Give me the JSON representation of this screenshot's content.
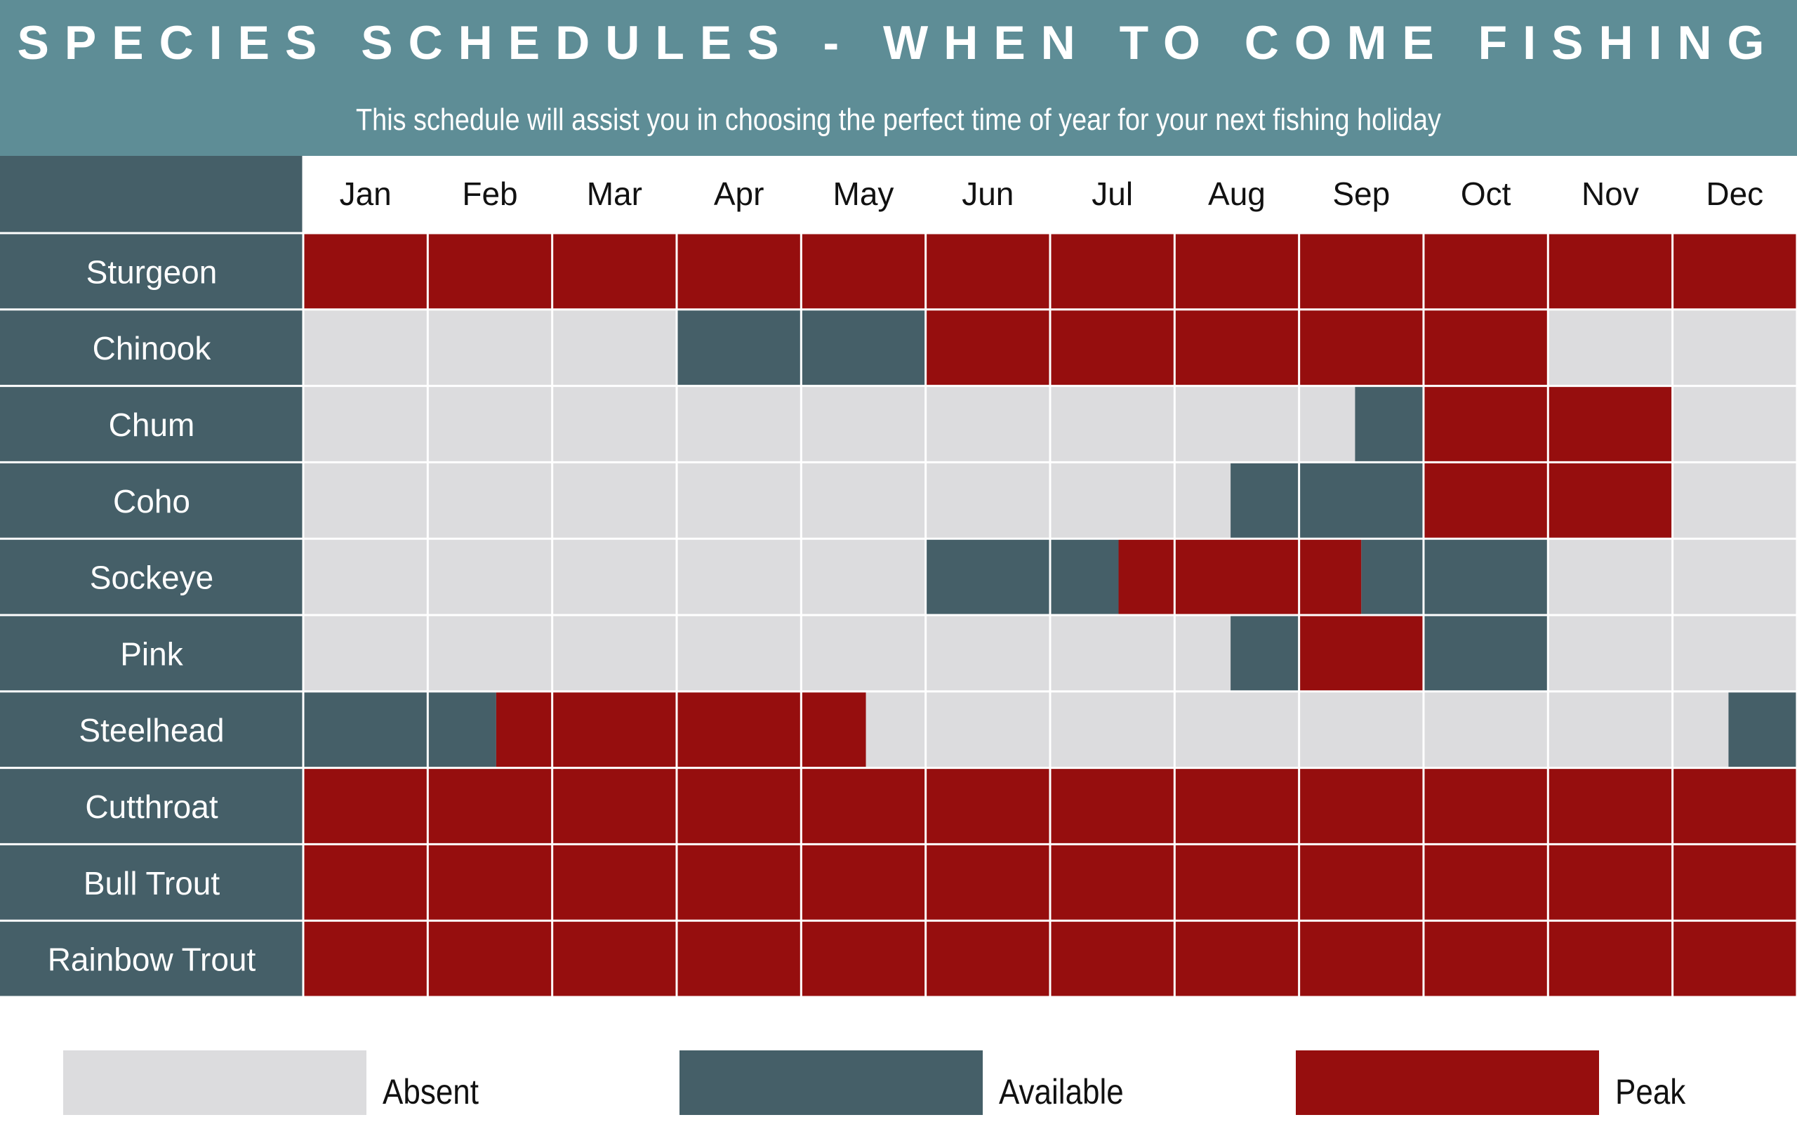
{
  "header": {
    "title": "SPECIES SCHEDULES - WHEN TO COME FISHING",
    "subtitle": "This schedule will assist you in choosing the perfect time of year for your next fishing holiday"
  },
  "colors": {
    "header_bg": "#5e8d96",
    "row_label_bg": "#455f68",
    "absent": "#dcdcde",
    "available": "#455f68",
    "peak": "#960e0e",
    "gridline": "#ffffff"
  },
  "chart_data": {
    "type": "heatmap",
    "title": "SPECIES SCHEDULES - WHEN TO COME FISHING",
    "subtitle": "This schedule will assist you in choosing the perfect time of year for your next fishing holiday",
    "months": [
      "Jan",
      "Feb",
      "Mar",
      "Apr",
      "May",
      "Jun",
      "Jul",
      "Aug",
      "Sep",
      "Oct",
      "Nov",
      "Dec"
    ],
    "legend": [
      {
        "key": "absent",
        "label": "Absent",
        "color": "#dcdcde"
      },
      {
        "key": "available",
        "label": "Available",
        "color": "#455f68"
      },
      {
        "key": "peak",
        "label": "Peak",
        "color": "#960e0e"
      }
    ],
    "species": [
      {
        "name": "Sturgeon",
        "periods": [
          {
            "from": 1,
            "to": 13,
            "status": "peak"
          }
        ]
      },
      {
        "name": "Chinook",
        "periods": [
          {
            "from": 4,
            "to": 6,
            "status": "available"
          },
          {
            "from": 6,
            "to": 11,
            "status": "peak"
          }
        ]
      },
      {
        "name": "Chum",
        "periods": [
          {
            "from": 9.45,
            "to": 10,
            "status": "available"
          },
          {
            "from": 10,
            "to": 12,
            "status": "peak"
          }
        ]
      },
      {
        "name": "Coho",
        "periods": [
          {
            "from": 8.45,
            "to": 10,
            "status": "available"
          },
          {
            "from": 10,
            "to": 12,
            "status": "peak"
          }
        ]
      },
      {
        "name": "Sockeye",
        "periods": [
          {
            "from": 6,
            "to": 7.55,
            "status": "available"
          },
          {
            "from": 7.55,
            "to": 9.5,
            "status": "peak"
          },
          {
            "from": 9.5,
            "to": 11,
            "status": "available"
          }
        ]
      },
      {
        "name": "Pink",
        "periods": [
          {
            "from": 8.45,
            "to": 9,
            "status": "available"
          },
          {
            "from": 9,
            "to": 10,
            "status": "peak"
          },
          {
            "from": 10,
            "to": 11,
            "status": "available"
          }
        ]
      },
      {
        "name": "Steelhead",
        "periods": [
          {
            "from": 1,
            "to": 2.55,
            "status": "available"
          },
          {
            "from": 2.55,
            "to": 5.52,
            "status": "peak"
          },
          {
            "from": 12.45,
            "to": 13,
            "status": "available"
          }
        ]
      },
      {
        "name": "Cutthroat",
        "periods": [
          {
            "from": 1,
            "to": 13,
            "status": "peak"
          }
        ]
      },
      {
        "name": "Bull Trout",
        "periods": [
          {
            "from": 1,
            "to": 13,
            "status": "peak"
          }
        ]
      },
      {
        "name": "Rainbow Trout",
        "periods": [
          {
            "from": 1,
            "to": 13,
            "status": "peak"
          }
        ]
      }
    ]
  }
}
